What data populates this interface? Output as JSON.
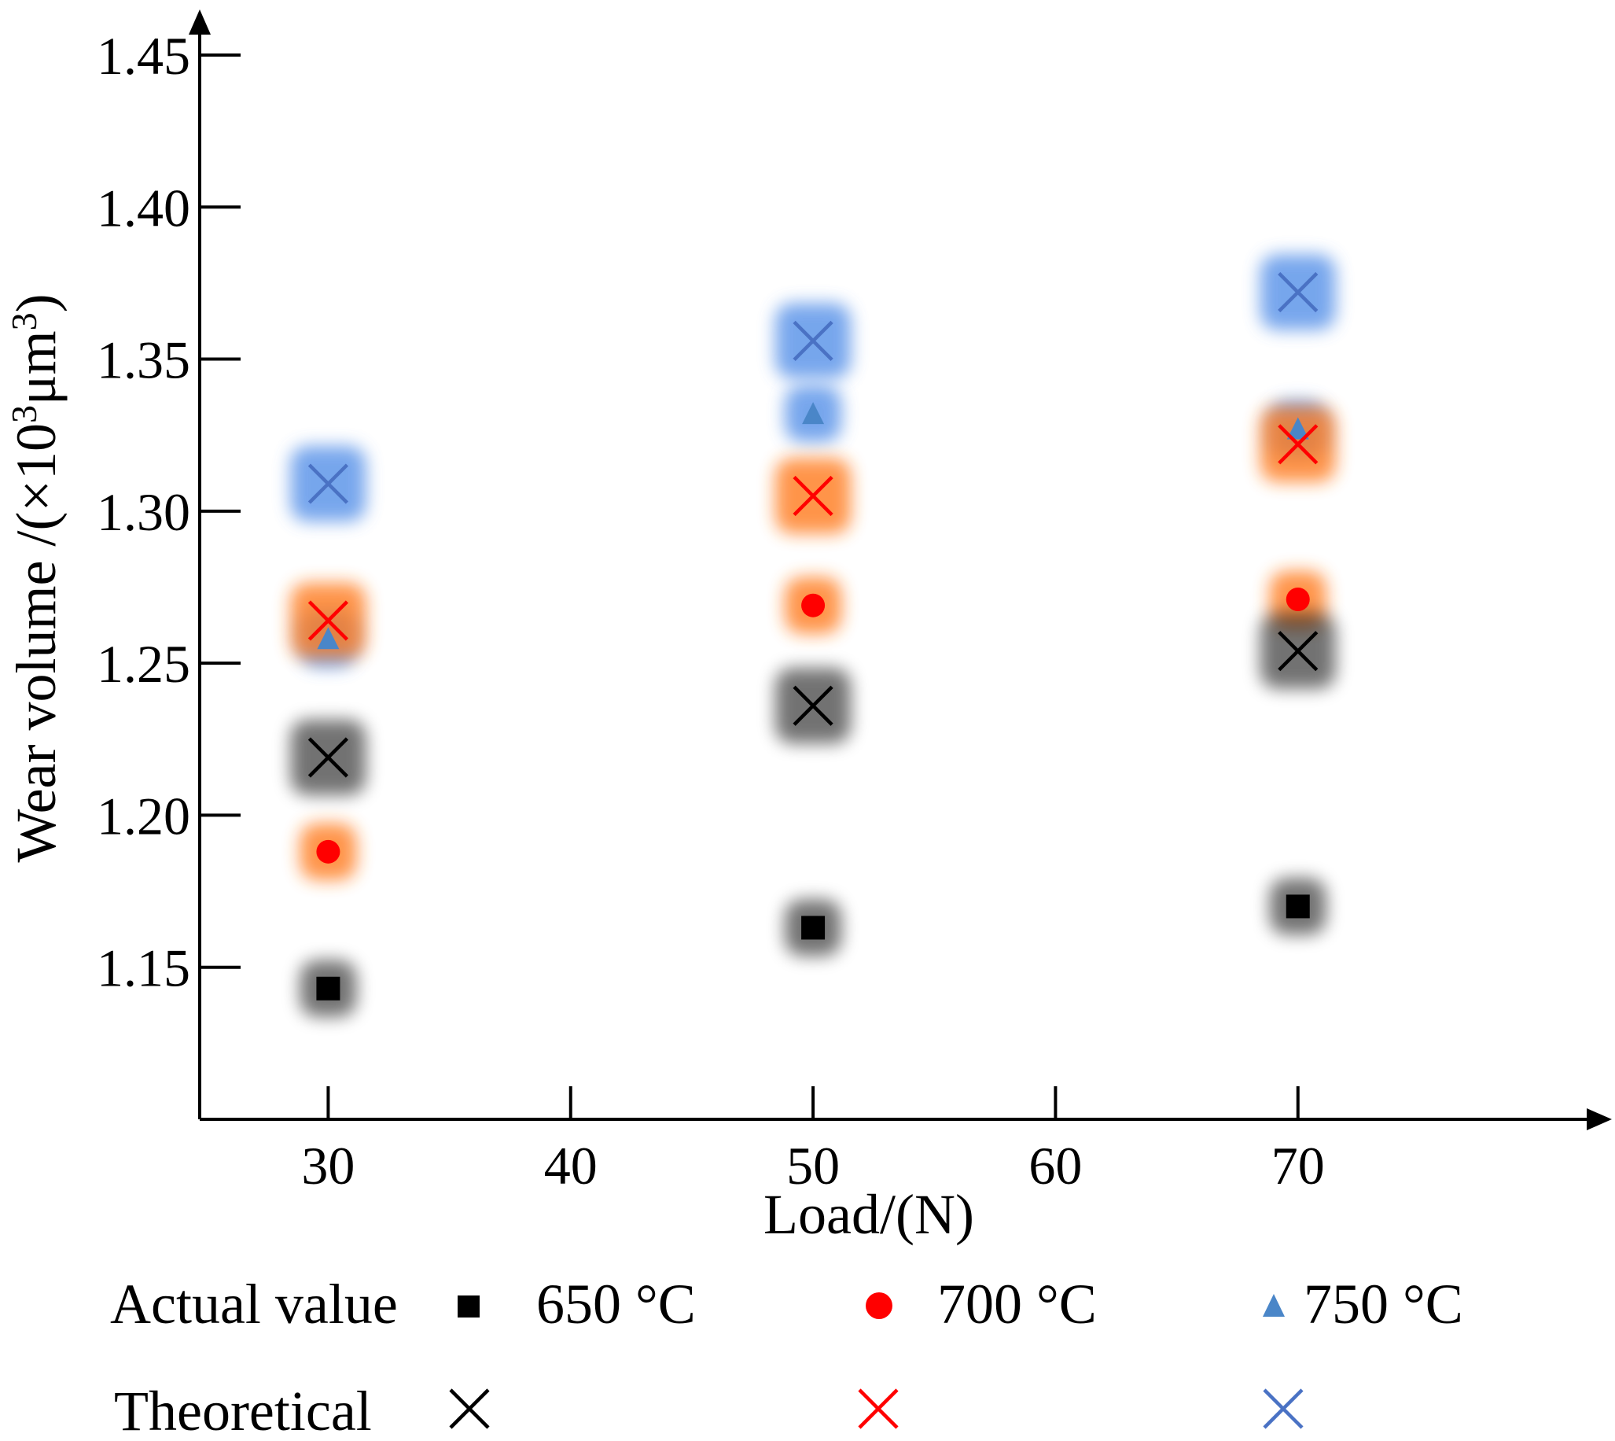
{
  "chart_data": {
    "type": "scatter",
    "xlabel": "Load/(N)",
    "ylabel_main": "Wear volume /(×10",
    "ylabel_sup1": "3",
    "ylabel_mid": "μm",
    "ylabel_sup2": "3",
    "ylabel_end": ")",
    "x_ticks": [
      30,
      40,
      50,
      60,
      70
    ],
    "x_tick_labels": [
      "30",
      "40",
      "50",
      "60",
      "70"
    ],
    "y_ticks": [
      1.15,
      1.2,
      1.25,
      1.3,
      1.35,
      1.4,
      1.45
    ],
    "y_tick_labels": [
      "1.15",
      "1.20",
      "1.25",
      "1.30",
      "1.35",
      "1.40",
      "1.45"
    ],
    "xlim": [
      24.7,
      82.3
    ],
    "ylim": [
      1.1,
      1.465
    ],
    "series": [
      {
        "name": "650 °C",
        "kind": "actual",
        "marker": "square",
        "color": "#000000",
        "glow": "#000000",
        "x": [
          30,
          50,
          70
        ],
        "y": [
          1.143,
          1.163,
          1.17
        ]
      },
      {
        "name": "700 °C",
        "kind": "actual",
        "marker": "circle",
        "color": "#ff0000",
        "glow": "#ff7a1a",
        "x": [
          30,
          50,
          70
        ],
        "y": [
          1.188,
          1.269,
          1.271
        ]
      },
      {
        "name": "750 °C",
        "kind": "actual",
        "marker": "triangle",
        "color": "#4a86c8",
        "glow": "#5590e8",
        "x": [
          30,
          50,
          70
        ],
        "y": [
          1.258,
          1.332,
          1.327
        ]
      },
      {
        "name": "650 °C",
        "kind": "theoretical",
        "marker": "cross",
        "color": "#000000",
        "glow": "#000000",
        "x": [
          30,
          50,
          70
        ],
        "y": [
          1.219,
          1.236,
          1.254
        ]
      },
      {
        "name": "700 °C",
        "kind": "theoretical",
        "marker": "cross",
        "color": "#ff0000",
        "glow": "#ff7a1a",
        "x": [
          30,
          50,
          70
        ],
        "y": [
          1.264,
          1.305,
          1.322
        ]
      },
      {
        "name": "750 °C",
        "kind": "theoretical",
        "marker": "cross",
        "color": "#4a72c4",
        "glow": "#5590e8",
        "x": [
          30,
          50,
          70
        ],
        "y": [
          1.309,
          1.356,
          1.372
        ]
      }
    ],
    "legend": {
      "actual_label": "Actual value",
      "theoretical_label": "Theoretical",
      "entries": [
        "650 °C",
        "700 °C",
        "750 °C"
      ]
    }
  }
}
